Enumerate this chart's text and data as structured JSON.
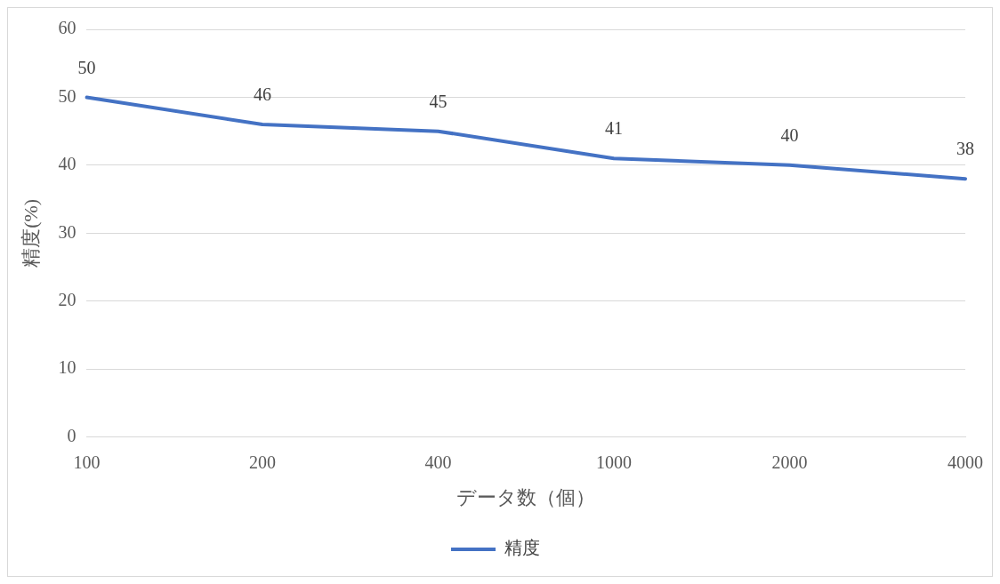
{
  "chart_data": {
    "type": "line",
    "xlabel": "データ数（個）",
    "ylabel": "精度(%)",
    "categories": [
      "100",
      "200",
      "400",
      "1000",
      "2000",
      "4000"
    ],
    "series": [
      {
        "name": "精度",
        "color": "#4472c4",
        "values": [
          50,
          46,
          45,
          41,
          40,
          38
        ]
      }
    ],
    "ylim": [
      0,
      60
    ],
    "yticks": [
      0,
      10,
      20,
      30,
      40,
      50,
      60
    ],
    "grid": "y",
    "legend": "bottom",
    "marker": "none",
    "line_style": "solid",
    "data_labels": true
  }
}
